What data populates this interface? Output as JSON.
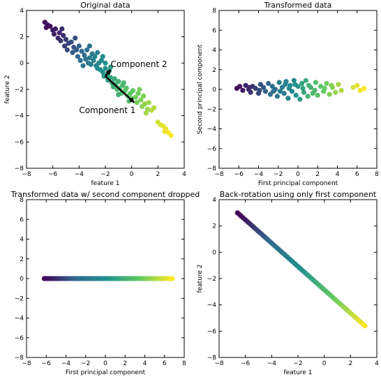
{
  "colors": {
    "low": "#440154",
    "mid_low": "#31688e",
    "mid": "#21918c",
    "mid_high": "#5ec962",
    "high": "#fde725"
  },
  "chart_data": [
    {
      "type": "scatter",
      "title": "Original data",
      "xlabel": "feature 1",
      "ylabel": "feature 2",
      "xlim": [
        -8,
        4
      ],
      "ylim": [
        -8,
        4
      ],
      "xticks": [
        -8,
        -6,
        -4,
        -2,
        0,
        2,
        4
      ],
      "yticks": [
        -8,
        -6,
        -4,
        -2,
        0,
        2,
        4
      ],
      "points": [
        [
          -6.6,
          3.1,
          0.02
        ],
        [
          -6.4,
          2.9,
          0.03
        ],
        [
          -6.2,
          2.8,
          0.04
        ],
        [
          -6.5,
          2.7,
          0.03
        ],
        [
          -6.0,
          2.5,
          0.06
        ],
        [
          -5.8,
          2.6,
          0.06
        ],
        [
          -5.5,
          2.3,
          0.09
        ],
        [
          -5.9,
          2.2,
          0.08
        ],
        [
          -5.2,
          2.1,
          0.11
        ],
        [
          -5.6,
          1.9,
          0.1
        ],
        [
          -5.4,
          1.7,
          0.12
        ],
        [
          -5.0,
          1.8,
          0.14
        ],
        [
          -4.8,
          1.5,
          0.16
        ],
        [
          -5.1,
          1.3,
          0.15
        ],
        [
          -4.6,
          1.6,
          0.18
        ],
        [
          -4.4,
          1.2,
          0.2
        ],
        [
          -4.9,
          1.0,
          0.18
        ],
        [
          -4.2,
          1.0,
          0.22
        ],
        [
          -4.0,
          1.3,
          0.24
        ],
        [
          -4.5,
          0.8,
          0.22
        ],
        [
          -3.8,
          0.9,
          0.26
        ],
        [
          -4.1,
          0.5,
          0.26
        ],
        [
          -3.6,
          0.6,
          0.3
        ],
        [
          -3.4,
          1.0,
          0.3
        ],
        [
          -3.9,
          0.2,
          0.3
        ],
        [
          -3.5,
          0.3,
          0.33
        ],
        [
          -3.2,
          0.4,
          0.35
        ],
        [
          -3.0,
          0.7,
          0.35
        ],
        [
          -3.3,
          0.0,
          0.36
        ],
        [
          -3.1,
          -0.1,
          0.38
        ],
        [
          -2.9,
          0.2,
          0.4
        ],
        [
          -2.7,
          -0.2,
          0.42
        ],
        [
          -2.8,
          0.5,
          0.4
        ],
        [
          -2.5,
          0.0,
          0.44
        ],
        [
          -2.6,
          -0.4,
          0.45
        ],
        [
          -2.4,
          -0.5,
          0.47
        ],
        [
          -2.3,
          0.2,
          0.45
        ],
        [
          -2.2,
          -0.7,
          0.5
        ],
        [
          -2.0,
          -0.4,
          0.5
        ],
        [
          -2.1,
          -1.0,
          0.52
        ],
        [
          -1.9,
          -0.9,
          0.54
        ],
        [
          -1.7,
          -0.6,
          0.54
        ],
        [
          -1.8,
          -1.3,
          0.56
        ],
        [
          -1.6,
          -1.1,
          0.58
        ],
        [
          -1.5,
          -1.5,
          0.6
        ],
        [
          -1.3,
          -1.2,
          0.6
        ],
        [
          -1.4,
          -1.8,
          0.62
        ],
        [
          -1.2,
          -1.6,
          0.64
        ],
        [
          -1.0,
          -1.4,
          0.64
        ],
        [
          -1.1,
          -2.0,
          0.66
        ],
        [
          -0.9,
          -1.9,
          0.68
        ],
        [
          -0.7,
          -1.7,
          0.68
        ],
        [
          -0.8,
          -2.3,
          0.7
        ],
        [
          -0.5,
          -2.1,
          0.71
        ],
        [
          -0.4,
          -1.9,
          0.71
        ],
        [
          -0.3,
          -2.5,
          0.73
        ],
        [
          -0.1,
          -2.3,
          0.74
        ],
        [
          0.1,
          -2.1,
          0.74
        ],
        [
          0.0,
          -2.7,
          0.76
        ],
        [
          0.3,
          -2.6,
          0.77
        ],
        [
          0.5,
          -2.3,
          0.77
        ],
        [
          0.4,
          -3.0,
          0.79
        ],
        [
          0.7,
          -2.8,
          0.8
        ],
        [
          0.9,
          -2.5,
          0.8
        ],
        [
          0.8,
          -3.3,
          0.82
        ],
        [
          1.0,
          -3.1,
          0.83
        ],
        [
          1.2,
          -3.5,
          0.85
        ],
        [
          1.3,
          -3.0,
          0.85
        ],
        [
          1.1,
          -3.8,
          0.86
        ],
        [
          1.5,
          -3.6,
          0.88
        ],
        [
          1.7,
          -3.4,
          0.88
        ],
        [
          2.0,
          -4.5,
          0.93
        ],
        [
          2.2,
          -4.7,
          0.95
        ],
        [
          2.4,
          -4.8,
          0.96
        ],
        [
          2.6,
          -5.0,
          0.97
        ],
        [
          2.8,
          -5.3,
          0.99
        ],
        [
          3.0,
          -5.5,
          1.0
        ],
        [
          2.5,
          -5.2,
          0.97
        ],
        [
          -2.6,
          0.8,
          0.4
        ],
        [
          -3.7,
          -0.2,
          0.33
        ],
        [
          -2.2,
          0.5,
          0.46
        ],
        [
          -1.6,
          -0.3,
          0.55
        ],
        [
          -0.6,
          -1.5,
          0.67
        ],
        [
          -0.2,
          -2.9,
          0.72
        ],
        [
          -1.0,
          -2.4,
          0.64
        ],
        [
          0.6,
          -2.0,
          0.79
        ],
        [
          -4.3,
          1.9,
          0.18
        ],
        [
          -5.3,
          2.6,
          0.1
        ],
        [
          -3.2,
          1.3,
          0.3
        ],
        [
          -2.0,
          0.0,
          0.5
        ]
      ],
      "annotations": [
        {
          "text": "Component 2",
          "x": -1.6,
          "y": -0.3
        },
        {
          "text": "Component 1",
          "x": -4.0,
          "y": -3.8
        }
      ],
      "arrows": [
        {
          "from": [
            -2.0,
            -1.0
          ],
          "to": [
            0.2,
            -3.0
          ]
        },
        {
          "from": [
            -2.0,
            -1.0
          ],
          "to": [
            -1.6,
            -0.5
          ]
        }
      ]
    },
    {
      "type": "scatter",
      "title": "Transformed data",
      "xlabel": "First principal component",
      "ylabel": "Second principal component",
      "xlim": [
        -8,
        8
      ],
      "ylim": [
        -8,
        8
      ],
      "xticks": [
        -8,
        -6,
        -4,
        -2,
        0,
        2,
        4,
        6,
        8
      ],
      "yticks": [
        -8,
        -6,
        -4,
        -2,
        0,
        2,
        4,
        6,
        8
      ],
      "points": [
        [
          -6.2,
          0.1,
          0.02
        ],
        [
          -5.9,
          0.3,
          0.04
        ],
        [
          -5.6,
          -0.1,
          0.06
        ],
        [
          -5.3,
          0.4,
          0.08
        ],
        [
          -5.0,
          0.0,
          0.1
        ],
        [
          -4.8,
          -0.3,
          0.12
        ],
        [
          -4.6,
          0.3,
          0.13
        ],
        [
          -4.3,
          0.1,
          0.15
        ],
        [
          -4.0,
          -0.4,
          0.17
        ],
        [
          -3.8,
          0.5,
          0.19
        ],
        [
          -3.5,
          0.2,
          0.21
        ],
        [
          -3.3,
          -0.2,
          0.23
        ],
        [
          -3.0,
          0.6,
          0.25
        ],
        [
          -2.8,
          -0.5,
          0.27
        ],
        [
          -2.6,
          0.3,
          0.29
        ],
        [
          -2.3,
          0.0,
          0.31
        ],
        [
          -2.1,
          -0.7,
          0.33
        ],
        [
          -1.9,
          0.7,
          0.35
        ],
        [
          -1.6,
          0.2,
          0.37
        ],
        [
          -1.4,
          -0.4,
          0.39
        ],
        [
          -1.2,
          0.8,
          0.41
        ],
        [
          -1.0,
          -0.9,
          0.43
        ],
        [
          -0.8,
          0.4,
          0.45
        ],
        [
          -0.6,
          -0.2,
          0.47
        ],
        [
          -0.4,
          0.9,
          0.49
        ],
        [
          -0.2,
          -0.6,
          0.51
        ],
        [
          0.0,
          0.3,
          0.53
        ],
        [
          0.2,
          -1.0,
          0.55
        ],
        [
          0.4,
          0.6,
          0.57
        ],
        [
          0.6,
          -0.3,
          0.59
        ],
        [
          0.8,
          0.9,
          0.61
        ],
        [
          1.0,
          -0.7,
          0.63
        ],
        [
          1.3,
          0.2,
          0.65
        ],
        [
          1.5,
          -0.4,
          0.67
        ],
        [
          1.8,
          0.7,
          0.69
        ],
        [
          2.0,
          -0.6,
          0.71
        ],
        [
          2.3,
          0.3,
          0.73
        ],
        [
          2.6,
          -0.2,
          0.75
        ],
        [
          2.9,
          0.6,
          0.77
        ],
        [
          3.2,
          -0.5,
          0.8
        ],
        [
          3.5,
          0.2,
          0.82
        ],
        [
          3.8,
          -0.3,
          0.84
        ],
        [
          4.1,
          0.5,
          0.86
        ],
        [
          4.4,
          -0.1,
          0.88
        ],
        [
          5.6,
          0.2,
          0.94
        ],
        [
          6.0,
          0.4,
          0.96
        ],
        [
          6.3,
          -0.1,
          0.98
        ],
        [
          6.7,
          0.1,
          1.0
        ],
        [
          -1.8,
          -0.2,
          0.36
        ],
        [
          -0.9,
          0.1,
          0.44
        ],
        [
          0.5,
          0.1,
          0.58
        ],
        [
          1.1,
          0.4,
          0.64
        ],
        [
          -3.9,
          -0.1,
          0.18
        ],
        [
          -2.5,
          -0.2,
          0.3
        ],
        [
          2.7,
          0.1,
          0.76
        ],
        [
          -0.3,
          0.5,
          0.5
        ],
        [
          1.7,
          -0.1,
          0.68
        ],
        [
          -4.9,
          0.2,
          0.11
        ],
        [
          3.4,
          0.4,
          0.81
        ],
        [
          -1.3,
          0.5,
          0.4
        ]
      ]
    },
    {
      "type": "scatter",
      "title": "Transformed data w/ second component dropped",
      "xlabel": "First principal component",
      "ylabel": "",
      "xlim": [
        -8,
        8
      ],
      "ylim": [
        -8,
        8
      ],
      "xticks": [
        -8,
        -6,
        -4,
        -2,
        0,
        2,
        4,
        6,
        8
      ],
      "yticks": [
        -8,
        -6,
        -4,
        -2,
        0,
        2,
        4,
        6,
        8
      ],
      "line_points": {
        "x_start": -6.2,
        "x_end": 6.8,
        "count": 70,
        "y": 0
      }
    },
    {
      "type": "scatter",
      "title": "Back-rotation using only first component",
      "xlabel": "feature 1",
      "ylabel": "feature 2",
      "xlim": [
        -8,
        4
      ],
      "ylim": [
        -8,
        4
      ],
      "xticks": [
        -8,
        -6,
        -4,
        -2,
        0,
        2,
        4
      ],
      "yticks": [
        -8,
        -6,
        -4,
        -2,
        0,
        2,
        4
      ],
      "line_points": {
        "from": [
          -6.6,
          3.0
        ],
        "to": [
          3.1,
          -5.6
        ],
        "count": 70
      }
    }
  ]
}
